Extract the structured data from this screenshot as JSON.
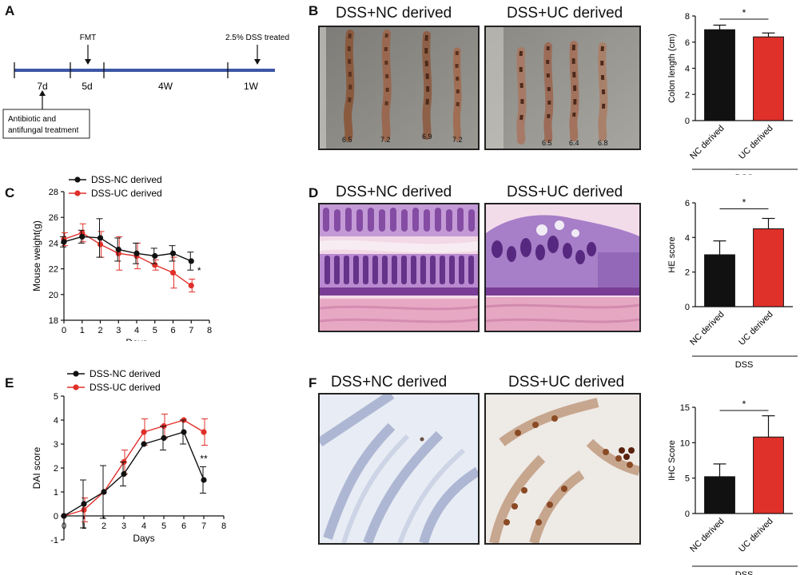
{
  "panels": {
    "A": "A",
    "B": "B",
    "C": "C",
    "D": "D",
    "E": "E",
    "F": "F"
  },
  "timeline": {
    "segments": [
      "7d",
      "5d",
      "4W",
      "1W"
    ],
    "fmt_label": "FMT",
    "dss_label": "2.5% DSS treated",
    "treatment_line1": "Antibiotic and",
    "treatment_line2": "antifungal treatment"
  },
  "photos": {
    "nc_title": "DSS+NC derived",
    "uc_title": "DSS+UC derived",
    "colon_nc_lengths": [
      "6.5",
      "7.2",
      "6.9",
      "7.2"
    ],
    "colon_uc_lengths": [
      "6.5",
      "6.4",
      "6.8"
    ]
  },
  "colors": {
    "nc": "#111111",
    "uc": "#e0302a",
    "timeline_bar": "#3c56a6"
  },
  "chart_data": [
    {
      "id": "colon",
      "type": "bar",
      "categories": [
        "NC derived",
        "UC derived"
      ],
      "values": [
        6.95,
        6.4
      ],
      "errors": [
        0.35,
        0.3
      ],
      "colors": [
        "#111111",
        "#e0302a"
      ],
      "ylabel": "Colon length (cm)",
      "ylim": [
        0,
        8
      ],
      "yticks": [
        "0",
        "2",
        "4",
        "6",
        "8"
      ],
      "group_label": "DSS",
      "significance": "*"
    },
    {
      "id": "weight",
      "type": "line",
      "x": [
        0,
        1,
        2,
        3,
        4,
        5,
        6,
        7
      ],
      "xticks": [
        "0",
        "1",
        "2",
        "3",
        "4",
        "5",
        "6",
        "7",
        "8"
      ],
      "yticks": [
        "18",
        "20",
        "22",
        "24",
        "26",
        "28"
      ],
      "xlim": [
        0,
        8
      ],
      "ylim": [
        18,
        28
      ],
      "xlabel": "Days",
      "ylabel": "Mouse weight(g)",
      "legend_position": "top-left",
      "significance": "*",
      "series": [
        {
          "name": "DSS-NC derived",
          "color": "#111111",
          "values": [
            24.1,
            24.5,
            24.4,
            23.5,
            23.2,
            23.0,
            23.2,
            22.6
          ],
          "errors": [
            0.4,
            0.5,
            1.5,
            0.9,
            0.8,
            0.6,
            0.6,
            0.7
          ]
        },
        {
          "name": "DSS-UC derived",
          "color": "#e0302a",
          "values": [
            24.3,
            24.8,
            23.9,
            23.2,
            23.0,
            22.3,
            21.7,
            20.7
          ],
          "errors": [
            0.5,
            0.7,
            1.0,
            1.3,
            1.0,
            0.4,
            1.2,
            0.5
          ]
        }
      ]
    },
    {
      "id": "he",
      "type": "bar",
      "categories": [
        "NC derived",
        "UC derived"
      ],
      "values": [
        3.0,
        4.5
      ],
      "errors": [
        0.8,
        0.6
      ],
      "colors": [
        "#111111",
        "#e0302a"
      ],
      "ylabel": "HE score",
      "ylim": [
        0,
        6
      ],
      "yticks": [
        "0",
        "2",
        "4",
        "6"
      ],
      "group_label": "DSS",
      "significance": "*"
    },
    {
      "id": "dai",
      "type": "line",
      "x": [
        0,
        1,
        2,
        3,
        4,
        5,
        6,
        7
      ],
      "xticks": [
        "0",
        "1",
        "2",
        "3",
        "4",
        "5",
        "6",
        "7",
        "8"
      ],
      "yticks": [
        "-1",
        "0",
        "1",
        "2",
        "3",
        "4",
        "5"
      ],
      "xlim": [
        0,
        8
      ],
      "ylim": [
        -1,
        5
      ],
      "xlabel": "Days",
      "ylabel": "DAI score",
      "legend_position": "top-left",
      "significance": "**",
      "series": [
        {
          "name": "DSS-NC derived",
          "color": "#111111",
          "values": [
            0,
            0.5,
            1.0,
            1.75,
            3.0,
            3.25,
            3.5,
            1.5
          ],
          "errors": [
            0,
            1.0,
            1.1,
            0.5,
            0,
            0.5,
            0.5,
            0.55
          ]
        },
        {
          "name": "DSS-UC derived",
          "color": "#e0302a",
          "values": [
            0,
            0.25,
            1.0,
            2.25,
            3.5,
            3.75,
            4.0,
            3.5
          ],
          "errors": [
            0,
            0.5,
            0,
            0.5,
            0.55,
            0.5,
            0,
            0.55
          ]
        }
      ]
    },
    {
      "id": "ihc",
      "type": "bar",
      "categories": [
        "NC derived",
        "UC derived"
      ],
      "values": [
        5.2,
        10.8
      ],
      "errors": [
        1.8,
        3.0
      ],
      "colors": [
        "#111111",
        "#e0302a"
      ],
      "ylabel": "IHC Score",
      "ylim": [
        0,
        15
      ],
      "yticks": [
        "0",
        "5",
        "10",
        "15"
      ],
      "group_label": "DSS",
      "significance": "*"
    }
  ]
}
